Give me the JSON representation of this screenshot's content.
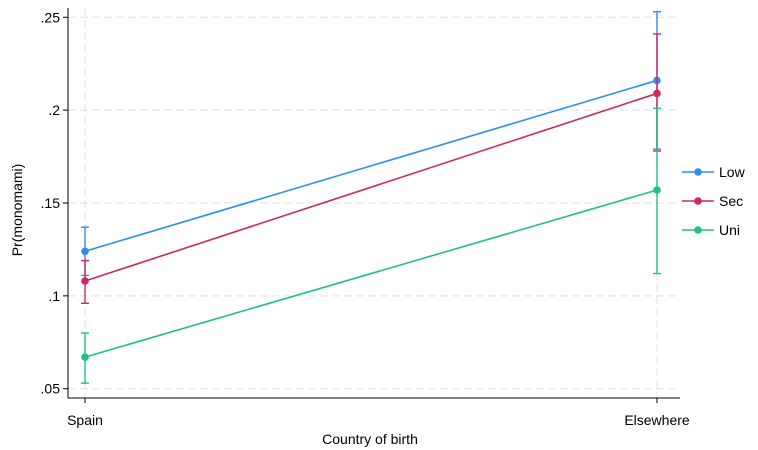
{
  "chart_data": {
    "type": "line",
    "xlabel": "Country of birth",
    "ylabel": "Pr(monomami)",
    "categories": [
      "Spain",
      "Elsewhere"
    ],
    "ylim": [
      0.045,
      0.255
    ],
    "yticks": [
      0.05,
      0.1,
      0.15,
      0.2,
      0.25
    ],
    "ytick_labels": [
      ".05",
      ".1",
      ".15",
      ".2",
      ".25"
    ],
    "grid": true,
    "legend_position": "right",
    "series": [
      {
        "name": "Low",
        "color": "#2e8ff0",
        "values": [
          0.124,
          0.216
        ],
        "ci_low": [
          0.111,
          0.179
        ],
        "ci_high": [
          0.137,
          0.253
        ]
      },
      {
        "name": "Sec",
        "color": "#cc2861",
        "values": [
          0.108,
          0.209
        ],
        "ci_low": [
          0.096,
          0.178
        ],
        "ci_high": [
          0.119,
          0.241
        ]
      },
      {
        "name": "Uni",
        "color": "#20c08c",
        "values": [
          0.067,
          0.157
        ],
        "ci_low": [
          0.053,
          0.112
        ],
        "ci_high": [
          0.08,
          0.201
        ]
      }
    ]
  }
}
